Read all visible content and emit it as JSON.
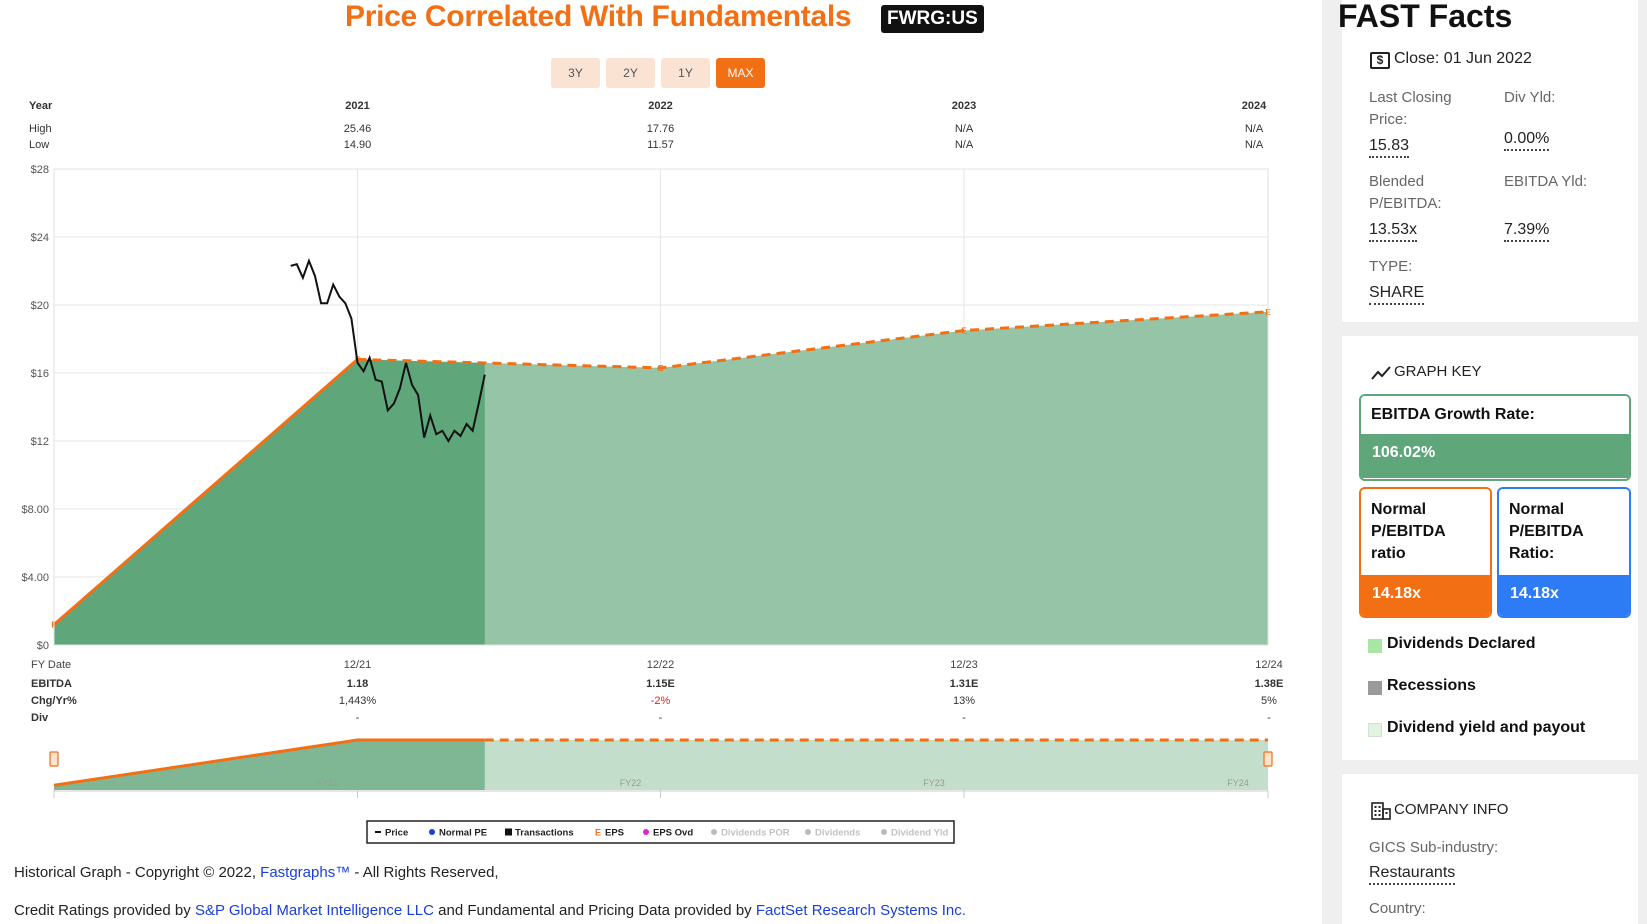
{
  "header": {
    "title": "Price Correlated With Fundamentals",
    "ticker": "FWRG:US"
  },
  "range_buttons": [
    "3Y",
    "2Y",
    "1Y",
    "MAX"
  ],
  "range_active": "MAX",
  "table_top": {
    "year_label": "Year",
    "high_label": "High",
    "low_label": "Low",
    "years": [
      "2021",
      "2022",
      "2023",
      "2024"
    ],
    "high": [
      "25.46",
      "17.76",
      "N/A",
      "N/A"
    ],
    "low": [
      "14.90",
      "11.57",
      "N/A",
      "N/A"
    ]
  },
  "table_bottom": {
    "fy_label": "FY Date",
    "ebitda_label": "EBITDA",
    "chg_label": "Chg/Yr%",
    "div_label": "Div",
    "fy_dates": [
      "12/21",
      "12/22",
      "12/23",
      "12/24"
    ],
    "ebitda": [
      "1.18",
      "1.15E",
      "1.31E",
      "1.38E"
    ],
    "chg": [
      "1,443%",
      "-2%",
      "13%",
      "5%"
    ],
    "div": [
      "-",
      "-",
      "-",
      "-"
    ]
  },
  "mini_labels": [
    "FY21",
    "FY22",
    "FY23",
    "FY24"
  ],
  "chart_data": {
    "type": "line",
    "y_tick_labels": [
      "$0",
      "$4.00",
      "$8.00",
      "$12",
      "$16",
      "$20",
      "$24",
      "$28"
    ],
    "ylim": [
      0,
      28
    ],
    "x_range": [
      "12/20",
      "12/24"
    ],
    "series": [
      {
        "name": "Price",
        "color": "#111111",
        "x": [
          0.78,
          0.8,
          0.82,
          0.84,
          0.86,
          0.88,
          0.9,
          0.92,
          0.94,
          0.96,
          0.98,
          1.0,
          1.02,
          1.04,
          1.06,
          1.08,
          1.1,
          1.12,
          1.14,
          1.16,
          1.18,
          1.2,
          1.22,
          1.24,
          1.26,
          1.28,
          1.3,
          1.32,
          1.34,
          1.36,
          1.38,
          1.4,
          1.42
        ],
        "y": [
          22.3,
          22.4,
          21.6,
          22.6,
          21.7,
          20.1,
          20.1,
          21.2,
          20.5,
          20.1,
          19.2,
          16.6,
          16.1,
          16.9,
          15.6,
          15.5,
          13.8,
          14.2,
          15.1,
          16.6,
          15.3,
          14.7,
          12.2,
          13.5,
          12.4,
          12.6,
          12.0,
          12.6,
          12.3,
          13.0,
          12.6,
          14.2,
          15.9
        ]
      },
      {
        "name": "EBITDA (EPS line)",
        "color": "#f36f13",
        "x": [
          0,
          1,
          2,
          3,
          4
        ],
        "y": [
          1.2,
          16.8,
          16.3,
          18.5,
          19.6
        ],
        "estimated_from_index": 1
      }
    ],
    "shaded_area": {
      "color": "#5fa67b",
      "historical_until_x": 1.42
    },
    "legend": [
      "Price",
      "Normal PE",
      "Transactions",
      "EPS",
      "EPS Ovd",
      "Dividends POR",
      "Dividends",
      "Dividend Yld"
    ],
    "legend_placement": "bottom-center"
  },
  "footer": {
    "line1_pre": "Historical Graph - Copyright © 2022, ",
    "line1_link": "Fastgraphs™",
    "line1_post": " - All Rights Reserved,",
    "line2_pre": "Credit Ratings provided by ",
    "line2_link1": "S&P Global Market Intelligence LLC",
    "line2_mid": " and Fundamental and Pricing Data provided by ",
    "line2_link2": "FactSet Research Systems Inc."
  },
  "fast_facts": {
    "title": "FAST Facts",
    "close": "Close: 01 Jun 2022",
    "last_closing_label": "Last Closing Price:",
    "last_closing_value": "15.83",
    "div_yld_label": "Div Yld:",
    "div_yld_value": "0.00%",
    "blended_label": "Blended P/EBITDA:",
    "blended_value": "13.53x",
    "ebitda_yld_label": "EBITDA Yld:",
    "ebitda_yld_value": "7.39%",
    "type_label": "TYPE:",
    "type_value": "SHARE"
  },
  "graph_key": {
    "title": "GRAPH KEY",
    "growth_label": "EBITDA Growth Rate:",
    "growth_value": "106.02%",
    "normal_orange_label": "Normal P/EBITDA ratio",
    "normal_orange_value": "14.18x",
    "normal_blue_label": "Normal P/EBITDA Ratio:",
    "normal_blue_value": "14.18x",
    "legend": [
      "Dividends Declared",
      "Recessions",
      "Dividend yield and payout"
    ]
  },
  "company_info": {
    "title": "COMPANY INFO",
    "industry_label": "GICS Sub-industry:",
    "industry_value": "Restaurants",
    "country_label": "Country:"
  },
  "colors": {
    "orange": "#f36f13",
    "green": "#5fa67b",
    "blue": "#2d7cf6"
  }
}
